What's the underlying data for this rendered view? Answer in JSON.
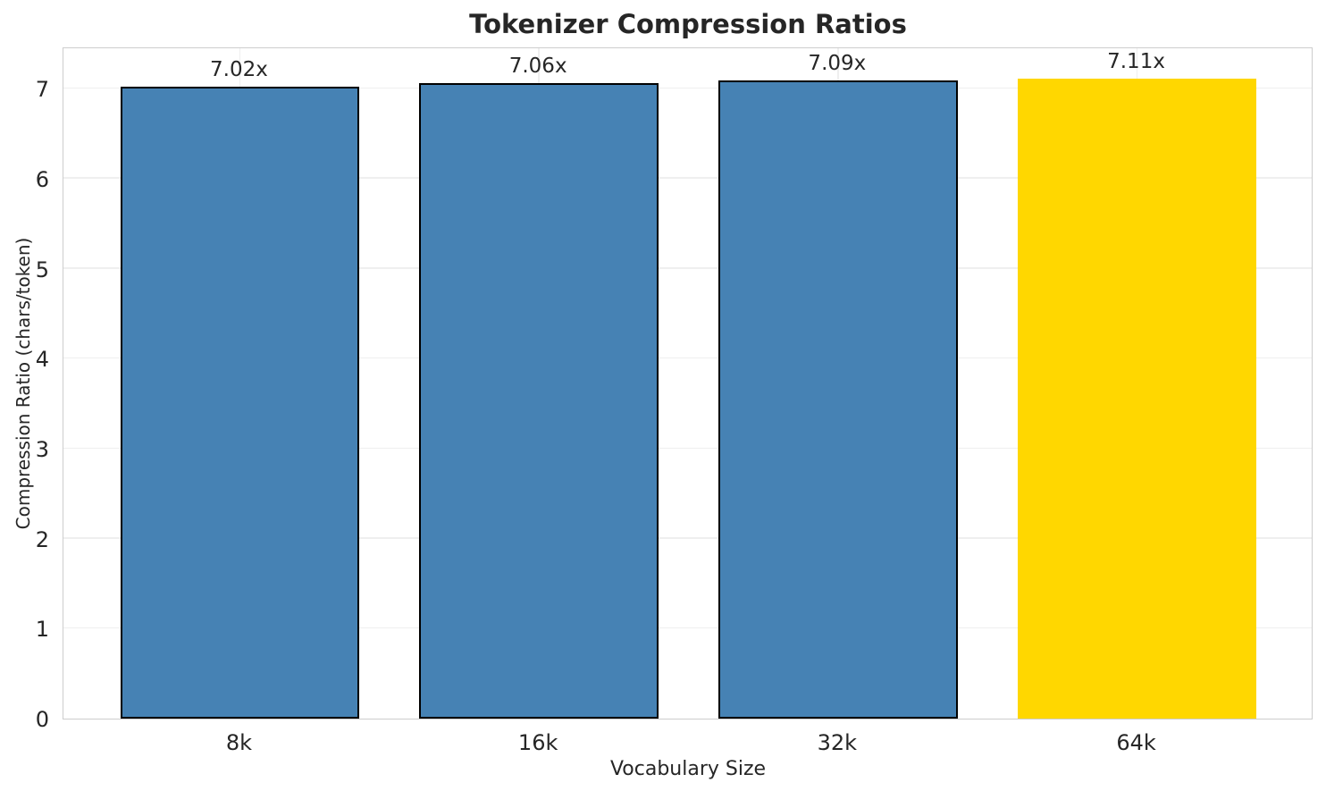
{
  "chart_data": {
    "type": "bar",
    "title": "Tokenizer Compression Ratios",
    "xlabel": "Vocabulary Size",
    "ylabel": "Compression Ratio (chars/token)",
    "categories": [
      "8k",
      "16k",
      "32k",
      "64k"
    ],
    "values": [
      7.02,
      7.06,
      7.09,
      7.11
    ],
    "value_labels": [
      "7.02x",
      "7.06x",
      "7.09x",
      "7.11x"
    ],
    "bar_colors": [
      "#4682B4",
      "#4682B4",
      "#4682B4",
      "#FFD700"
    ],
    "bar_edge_colors": [
      "#000000",
      "#000000",
      "#000000",
      "none"
    ],
    "highlighted_category": "64k",
    "yticks": [
      0,
      1,
      2,
      3,
      4,
      5,
      6,
      7
    ],
    "ylim": [
      0,
      7.47
    ],
    "xlim_units": [
      -0.59,
      3.59
    ],
    "bar_width_units": 0.8,
    "grid": "both",
    "legend": "none",
    "grid_color": "#efefef",
    "spine_color": "#cdcdcd",
    "text_color": "#262626",
    "background_color": "#ffffff"
  }
}
